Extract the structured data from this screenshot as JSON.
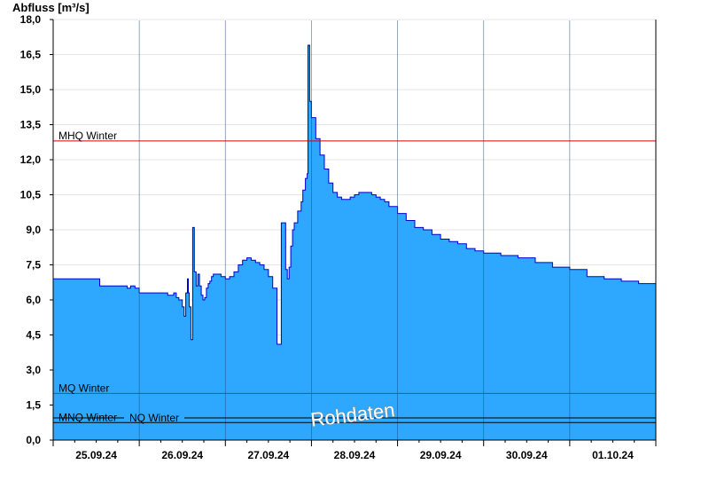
{
  "chart_data": {
    "type": "area",
    "ylabel": "Abfluss [m³/s]",
    "ylim": [
      0,
      18
    ],
    "y_ticks": [
      "0,0",
      "1,5",
      "3,0",
      "4,5",
      "6,0",
      "7,5",
      "9,0",
      "10,5",
      "12,0",
      "13,5",
      "15,0",
      "16,5",
      "18,0"
    ],
    "y_tick_values": [
      0,
      1.5,
      3,
      4.5,
      6,
      7.5,
      9,
      10.5,
      12,
      13.5,
      15,
      16.5,
      18
    ],
    "x_start": "24.09.24 00:00",
    "x_range_days": [
      0.0,
      7.0
    ],
    "x_tick_labels": [
      "25.09.24",
      "26.09.24",
      "27.09.24",
      "28.09.24",
      "29.09.24",
      "30.09.24",
      "01.10.24"
    ],
    "x_tick_days": [
      0.5,
      1.5,
      2.5,
      3.5,
      4.5,
      5.5,
      6.5
    ],
    "day_boundaries": [
      1,
      2,
      3,
      4,
      5,
      6
    ],
    "grid": true,
    "fill_color": "#2ea8ff",
    "line_color": "#0000cc",
    "reference_lines": [
      {
        "name": "MHQ Winter",
        "value": 12.8,
        "color": "#cc0000"
      },
      {
        "name": "MQ Winter",
        "value": 2.0,
        "color": "#1a7a1a"
      },
      {
        "name": "MNQ Winter",
        "value": 0.75,
        "color": "#000000"
      },
      {
        "name": "NQ Winter",
        "value": 0.95,
        "color": "#000000"
      }
    ],
    "watermark": "Rohdaten",
    "series": [
      {
        "x": [
          0.0,
          0.5,
          0.54,
          0.84,
          0.86,
          0.9,
          0.95,
          1.0,
          1.3,
          1.33,
          1.4,
          1.43,
          1.46,
          1.5,
          1.52,
          1.54,
          1.56,
          1.57,
          1.58,
          1.6,
          1.62,
          1.64,
          1.66,
          1.68,
          1.7,
          1.72,
          1.74,
          1.76,
          1.78,
          1.8,
          1.82,
          1.84,
          1.86,
          1.88,
          1.9,
          1.92,
          1.95,
          2.0,
          2.05,
          2.1,
          2.15,
          2.2,
          2.25,
          2.3,
          2.35,
          2.4,
          2.45,
          2.5,
          2.55,
          2.6,
          2.65,
          2.7,
          2.72,
          2.74,
          2.76,
          2.78,
          2.8,
          2.84,
          2.88,
          2.9,
          2.93,
          2.95,
          2.96,
          2.98,
          3.0,
          3.05,
          3.1,
          3.15,
          3.2,
          3.25,
          3.3,
          3.35,
          3.4,
          3.45,
          3.5,
          3.55,
          3.6,
          3.65,
          3.7,
          3.75,
          3.8,
          3.85,
          3.9,
          4.0,
          4.1,
          4.2,
          4.3,
          4.4,
          4.5,
          4.6,
          4.7,
          4.8,
          4.9,
          5.0,
          5.2,
          5.4,
          5.6,
          5.8,
          6.0,
          6.2,
          6.4,
          6.6,
          6.8,
          7.0
        ],
        "values": [
          6.9,
          6.9,
          6.6,
          6.6,
          6.5,
          6.6,
          6.5,
          6.3,
          6.3,
          6.2,
          6.3,
          6.1,
          6.0,
          5.7,
          5.3,
          6.3,
          6.9,
          6.3,
          5.7,
          4.3,
          9.1,
          7.2,
          6.6,
          7.1,
          6.6,
          6.2,
          6.0,
          6.1,
          6.5,
          6.7,
          6.8,
          7.0,
          7.1,
          7.1,
          7.1,
          7.1,
          7.0,
          6.9,
          7.0,
          7.2,
          7.5,
          7.7,
          7.8,
          7.7,
          7.6,
          7.5,
          7.3,
          7.0,
          6.5,
          4.1,
          9.3,
          7.3,
          6.9,
          7.4,
          8.3,
          9.0,
          9.3,
          9.8,
          10.2,
          10.7,
          11.2,
          11.4,
          16.9,
          14.5,
          13.8,
          12.9,
          12.2,
          11.6,
          11.0,
          10.6,
          10.4,
          10.3,
          10.3,
          10.4,
          10.5,
          10.6,
          10.6,
          10.6,
          10.5,
          10.4,
          10.3,
          10.2,
          10.0,
          9.7,
          9.4,
          9.1,
          9.0,
          8.8,
          8.6,
          8.5,
          8.4,
          8.2,
          8.1,
          8.0,
          7.9,
          7.8,
          7.6,
          7.4,
          7.3,
          7.0,
          6.9,
          6.8,
          6.7,
          6.6
        ]
      }
    ]
  }
}
